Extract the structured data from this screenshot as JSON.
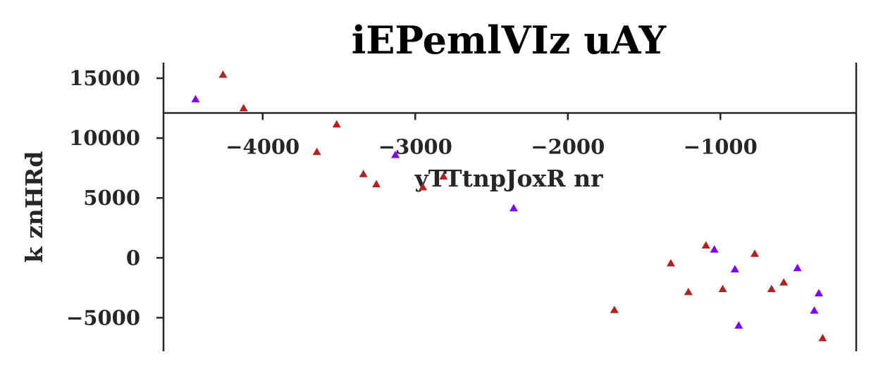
{
  "chart_data": {
    "type": "scatter",
    "title": "iEPemlVIz uAY",
    "xlabel": "yTTtnpJoxR  nr",
    "ylabel": "k znHRd",
    "xlim": [
      -4650,
      -110
    ],
    "ylim": [
      -7800,
      16300
    ],
    "x_ticks": [
      -4000,
      -3000,
      -2000,
      -1000
    ],
    "x_tick_labels": [
      "−4000",
      "−3000",
      "−2000",
      "−1000"
    ],
    "y_ticks": [
      -5000,
      0,
      5000,
      10000,
      15000
    ],
    "y_tick_labels": [
      "−5000",
      "0",
      "5000",
      "10000",
      "15000"
    ],
    "x_axis_position": 12100,
    "grid": false,
    "marker": "triangle",
    "colors": {
      "series_a": "#b22222",
      "series_b": "#7f00ff"
    },
    "series": [
      {
        "color": "#b22222",
        "points": [
          {
            "x": -4260,
            "y": 15300
          },
          {
            "x": -4125,
            "y": 12500
          },
          {
            "x": -3515,
            "y": 11150
          },
          {
            "x": -3645,
            "y": 8850
          },
          {
            "x": -3340,
            "y": 7000
          },
          {
            "x": -3255,
            "y": 6150
          },
          {
            "x": -2950,
            "y": 5900
          },
          {
            "x": -2815,
            "y": 6800
          },
          {
            "x": -1695,
            "y": -4350
          },
          {
            "x": -1325,
            "y": -450
          },
          {
            "x": -1210,
            "y": -2850
          },
          {
            "x": -1095,
            "y": 1050
          },
          {
            "x": -985,
            "y": -2600
          },
          {
            "x": -775,
            "y": 350
          },
          {
            "x": -665,
            "y": -2600
          },
          {
            "x": -585,
            "y": -2050
          },
          {
            "x": -330,
            "y": -6700
          }
        ]
      },
      {
        "color": "#7f00ff",
        "points": [
          {
            "x": -4440,
            "y": 13250
          },
          {
            "x": -3130,
            "y": 8600
          },
          {
            "x": -2355,
            "y": 4150
          },
          {
            "x": -1040,
            "y": 700
          },
          {
            "x": -905,
            "y": -950
          },
          {
            "x": -880,
            "y": -5650
          },
          {
            "x": -495,
            "y": -850
          },
          {
            "x": -385,
            "y": -4400
          },
          {
            "x": -355,
            "y": -2950
          }
        ]
      }
    ]
  }
}
